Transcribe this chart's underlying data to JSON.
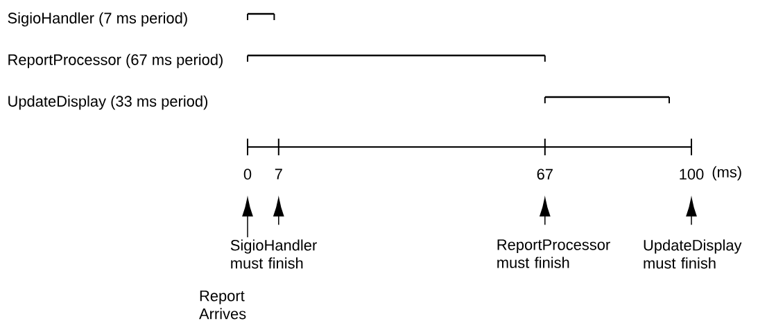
{
  "chart_data": {
    "type": "bar",
    "orientation": "horizontal",
    "categories": [
      "SigioHandler (7 ms period)",
      "ReportProcessor (67 ms period)",
      "UpdateDisplay (33 ms period)"
    ],
    "base": [
      0,
      0,
      67
    ],
    "values": [
      6,
      67,
      28
    ],
    "color": "#000000",
    "xlim": [
      0,
      100
    ],
    "xticks": [
      0,
      7,
      67,
      100
    ],
    "xlabel": "(ms)",
    "annotations": [
      "Report Arrives",
      "SigioHandler must finish",
      "ReportProcessor must finish",
      "UpdateDisplay must finish"
    ]
  }
}
